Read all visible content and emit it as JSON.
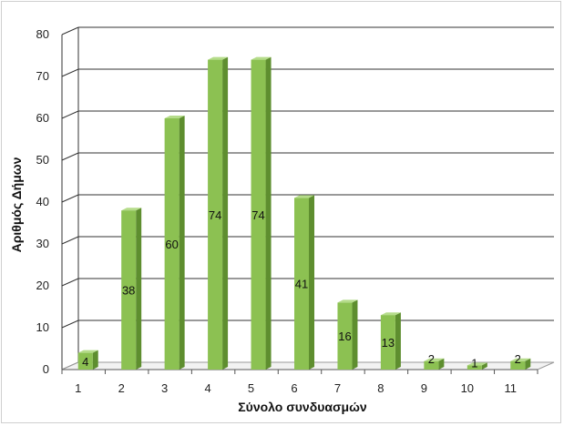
{
  "chart_data": {
    "type": "bar",
    "title": "",
    "xlabel": "Σύνολο συνδυασμών",
    "ylabel": "Αριθμός Δήμων",
    "categories": [
      "1",
      "2",
      "3",
      "4",
      "5",
      "6",
      "7",
      "8",
      "9",
      "10",
      "11"
    ],
    "values": [
      4,
      38,
      60,
      74,
      74,
      41,
      16,
      13,
      2,
      1,
      2
    ],
    "ylim": [
      0,
      80
    ],
    "yticks": [
      "0",
      "10",
      "20",
      "30",
      "40",
      "50",
      "60",
      "70",
      "80"
    ],
    "grid": true,
    "legend": "none",
    "colors": {
      "bar_front": "#8cc152",
      "bar_side": "#5e8e2f",
      "bar_top": "#b5dc8a",
      "grid": "#333333"
    }
  }
}
